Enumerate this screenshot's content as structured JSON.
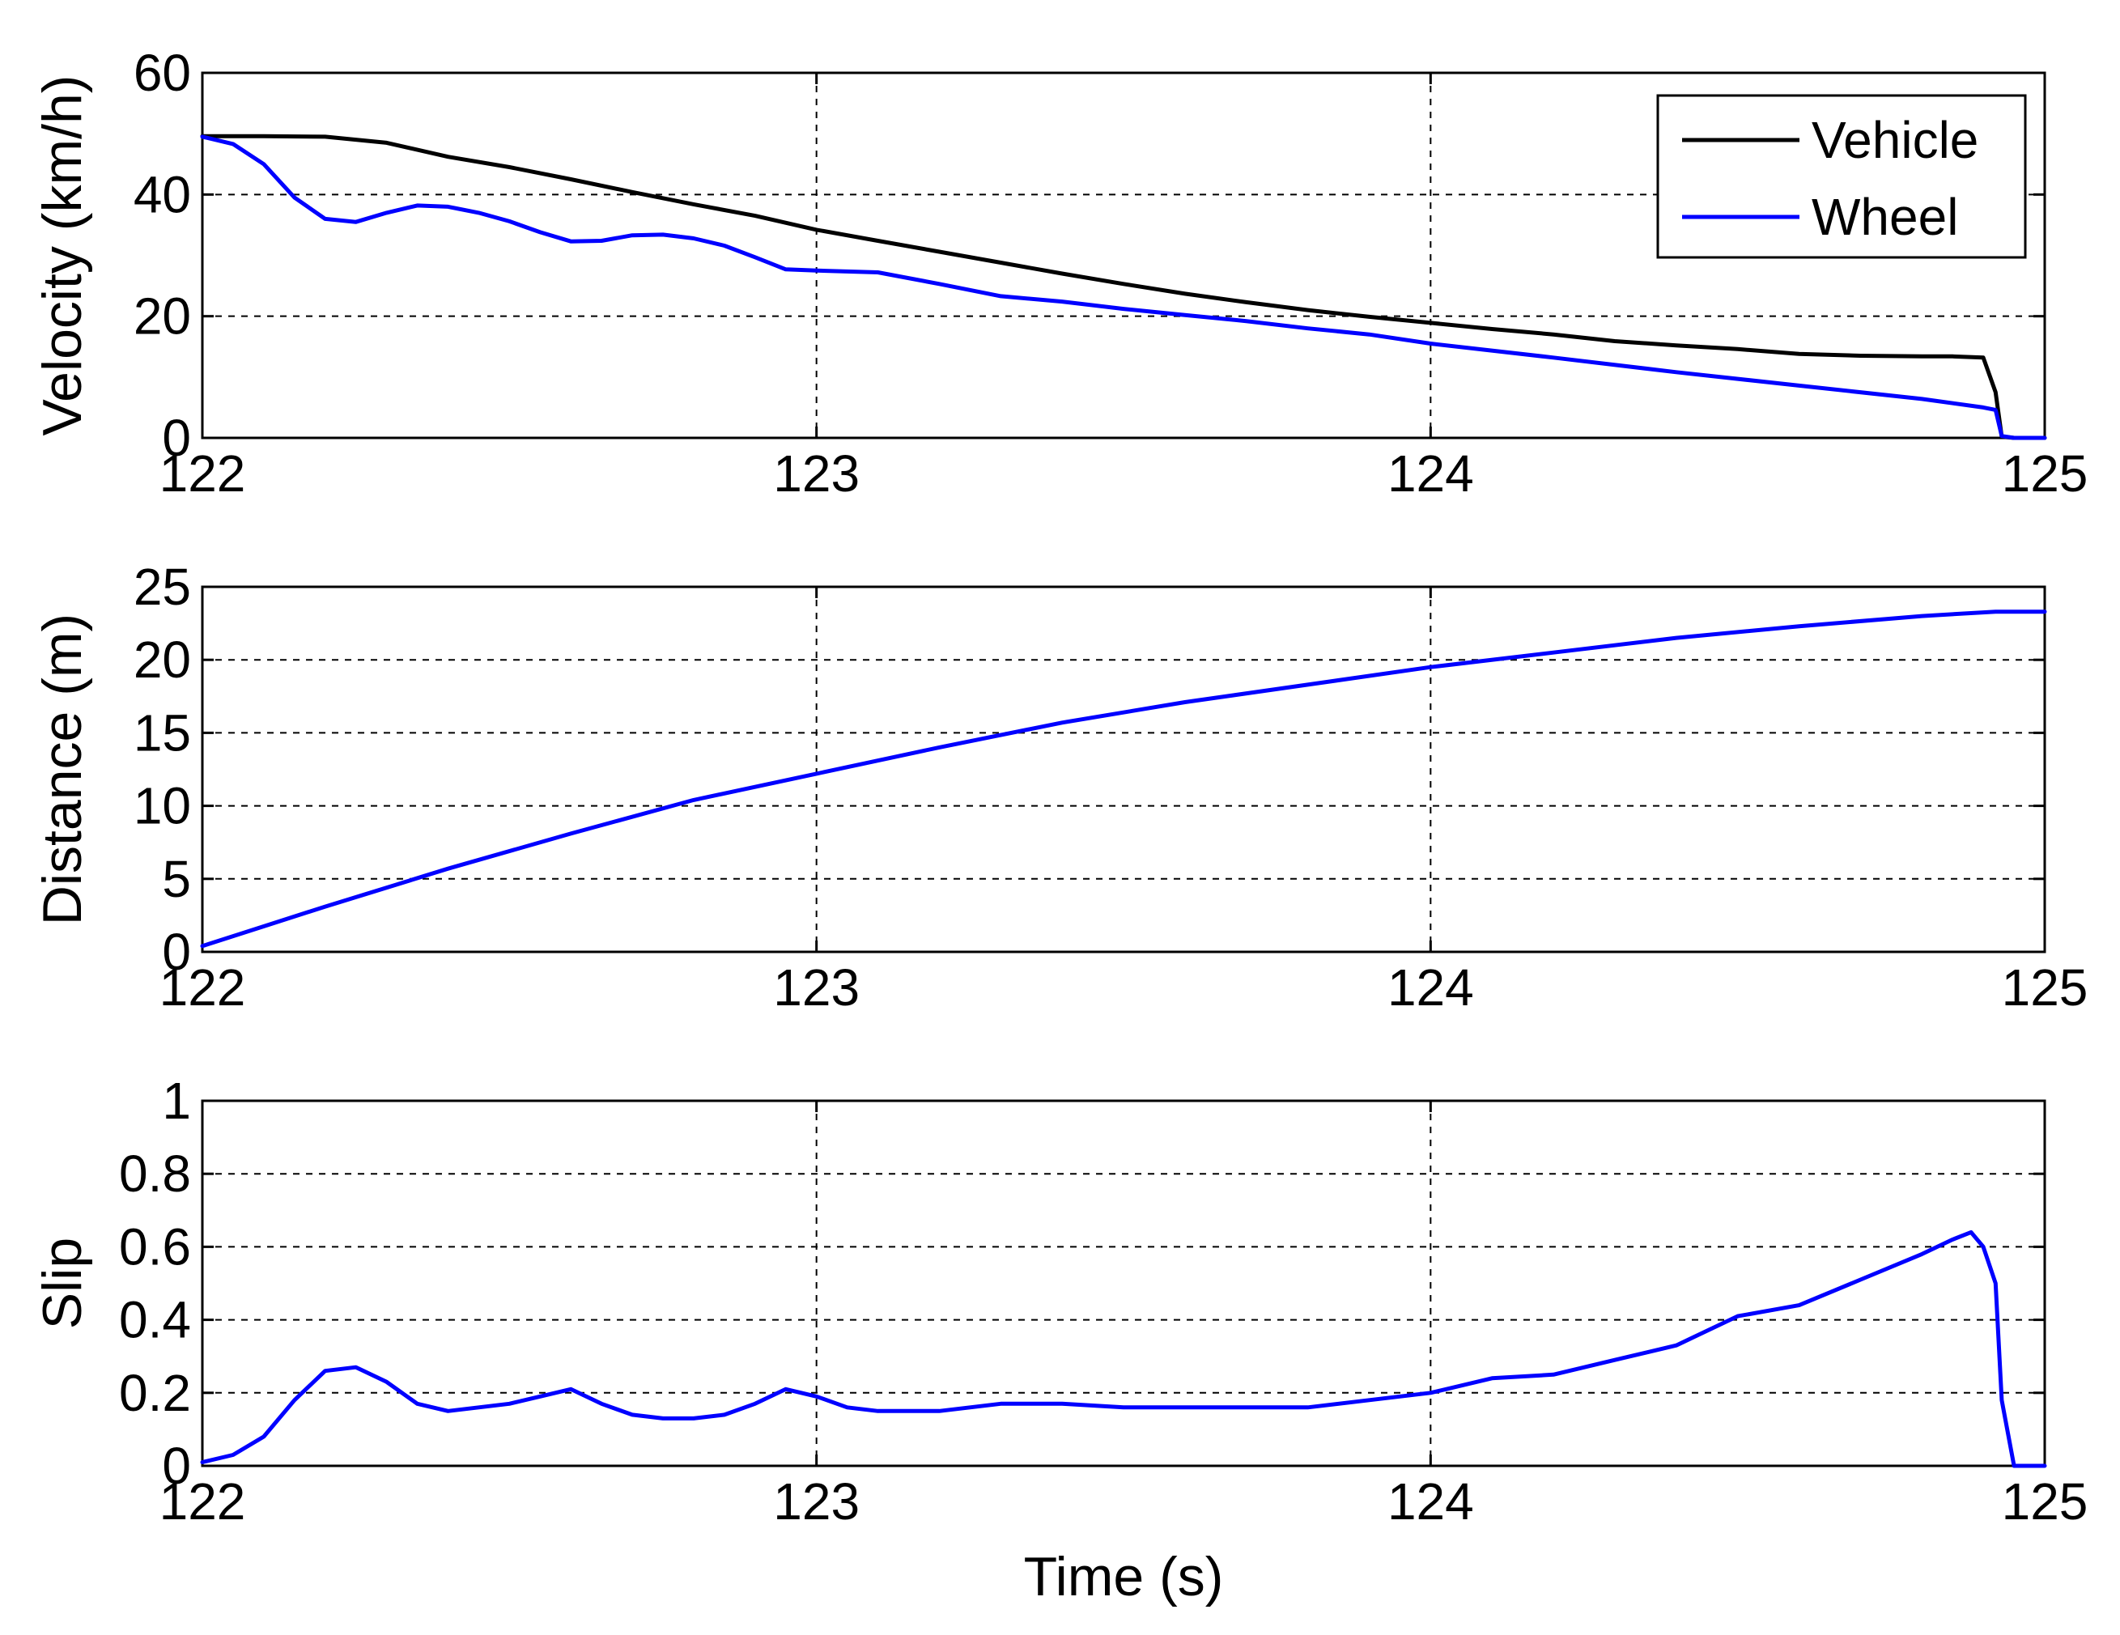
{
  "chart_data": [
    {
      "type": "line",
      "ylabel": "Velocity (km/h)",
      "xlabel": "",
      "xlim": [
        122,
        125
      ],
      "ylim": [
        0,
        60
      ],
      "xticks": [
        "122",
        "123",
        "124",
        "125"
      ],
      "yticks": [
        "0",
        "20",
        "40",
        "60"
      ],
      "grid": true,
      "legend": "top-right",
      "series": [
        {
          "name": "Vehicle",
          "color": "#000000",
          "x": [
            122.0,
            122.1,
            122.2,
            122.3,
            122.4,
            122.5,
            122.6,
            122.7,
            122.8,
            122.9,
            123.0,
            123.1,
            123.2,
            123.3,
            123.4,
            123.5,
            123.6,
            123.7,
            123.8,
            123.9,
            124.0,
            124.1,
            124.2,
            124.3,
            124.4,
            124.5,
            124.6,
            124.7,
            124.8,
            124.85,
            124.9,
            124.92,
            124.93,
            124.95,
            125.0
          ],
          "y": [
            49.6,
            49.6,
            49.5,
            48.5,
            46.2,
            44.5,
            42.5,
            40.4,
            38.4,
            36.5,
            34.2,
            32.4,
            30.6,
            28.8,
            27.0,
            25.3,
            23.7,
            22.3,
            21.0,
            19.9,
            18.9,
            17.9,
            17.0,
            15.9,
            15.2,
            14.6,
            13.8,
            13.5,
            13.4,
            13.4,
            13.2,
            7.5,
            0.2,
            0.0,
            0.0
          ]
        },
        {
          "name": "Wheel",
          "color": "#0000ff",
          "x": [
            122.0,
            122.05,
            122.1,
            122.15,
            122.2,
            122.25,
            122.3,
            122.35,
            122.4,
            122.45,
            122.5,
            122.55,
            122.6,
            122.65,
            122.7,
            122.75,
            122.8,
            122.85,
            122.9,
            122.95,
            123.0,
            123.1,
            123.2,
            123.3,
            123.4,
            123.5,
            123.6,
            123.7,
            123.8,
            123.9,
            124.0,
            124.2,
            124.4,
            124.6,
            124.8,
            124.9,
            124.92,
            124.93,
            124.95,
            125.0
          ],
          "y": [
            49.5,
            48.3,
            45.0,
            39.5,
            36.0,
            35.5,
            37.0,
            38.2,
            38.0,
            37.0,
            35.6,
            33.8,
            32.3,
            32.4,
            33.3,
            33.4,
            32.8,
            31.6,
            29.7,
            27.7,
            27.5,
            27.2,
            25.3,
            23.3,
            22.4,
            21.2,
            20.2,
            19.2,
            18.0,
            17.0,
            15.5,
            13.2,
            10.8,
            8.6,
            6.4,
            5.0,
            4.6,
            0.3,
            0.0,
            0.0
          ]
        }
      ]
    },
    {
      "type": "line",
      "ylabel": "Distance (m)",
      "xlabel": "",
      "xlim": [
        122,
        125
      ],
      "ylim": [
        0,
        25
      ],
      "xticks": [
        "122",
        "123",
        "124",
        "125"
      ],
      "yticks": [
        "0",
        "5",
        "10",
        "15",
        "20",
        "25"
      ],
      "grid": true,
      "series": [
        {
          "name": "",
          "color": "#0000ff",
          "x": [
            122.0,
            122.2,
            122.4,
            122.6,
            122.8,
            123.0,
            123.2,
            123.4,
            123.6,
            123.8,
            124.0,
            124.2,
            124.4,
            124.6,
            124.8,
            124.92,
            125.0
          ],
          "y": [
            0.4,
            3.1,
            5.7,
            8.1,
            10.4,
            12.2,
            14.0,
            15.7,
            17.1,
            18.3,
            19.5,
            20.5,
            21.5,
            22.3,
            23.0,
            23.3,
            23.3
          ]
        }
      ]
    },
    {
      "type": "line",
      "ylabel": "Slip",
      "xlabel": "Time (s)",
      "xlim": [
        122,
        125
      ],
      "ylim": [
        0,
        1
      ],
      "xticks": [
        "122",
        "123",
        "124",
        "125"
      ],
      "yticks": [
        "0",
        "0.2",
        "0.4",
        "0.6",
        "0.8",
        "1"
      ],
      "grid": true,
      "series": [
        {
          "name": "",
          "color": "#0000ff",
          "x": [
            122.0,
            122.05,
            122.1,
            122.15,
            122.2,
            122.25,
            122.3,
            122.35,
            122.4,
            122.45,
            122.5,
            122.55,
            122.6,
            122.65,
            122.7,
            122.75,
            122.8,
            122.85,
            122.9,
            122.95,
            123.0,
            123.05,
            123.1,
            123.2,
            123.3,
            123.4,
            123.5,
            123.6,
            123.7,
            123.8,
            123.9,
            124.0,
            124.1,
            124.2,
            124.3,
            124.4,
            124.5,
            124.6,
            124.7,
            124.8,
            124.85,
            124.88,
            124.9,
            124.92,
            124.93,
            124.95,
            125.0
          ],
          "y": [
            0.01,
            0.03,
            0.08,
            0.18,
            0.26,
            0.27,
            0.23,
            0.17,
            0.15,
            0.16,
            0.17,
            0.19,
            0.21,
            0.17,
            0.14,
            0.13,
            0.13,
            0.14,
            0.17,
            0.21,
            0.19,
            0.16,
            0.15,
            0.15,
            0.17,
            0.17,
            0.16,
            0.16,
            0.16,
            0.16,
            0.18,
            0.2,
            0.24,
            0.25,
            0.29,
            0.33,
            0.41,
            0.44,
            0.51,
            0.58,
            0.62,
            0.64,
            0.6,
            0.5,
            0.18,
            0.0,
            0.0
          ]
        }
      ]
    }
  ]
}
